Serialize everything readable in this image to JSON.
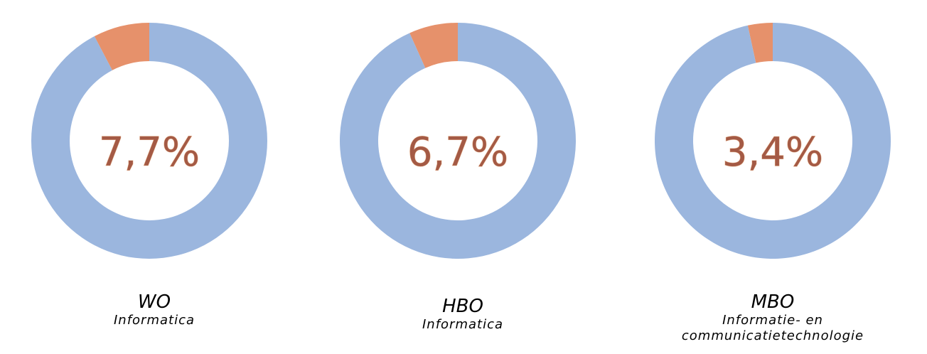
{
  "chart_data": [
    {
      "type": "pie",
      "title": "WO",
      "subtitle": "Informatica",
      "center_label": "7,7%",
      "slices": [
        {
          "label": "",
          "value": 7.7,
          "color": "#E6916B"
        },
        {
          "label": "",
          "value": 92.3,
          "color": "#9BB6DE"
        }
      ]
    },
    {
      "type": "pie",
      "title": "HBO",
      "subtitle": "Informatica",
      "center_label": "6,7%",
      "slices": [
        {
          "label": "",
          "value": 6.7,
          "color": "#E6916B"
        },
        {
          "label": "",
          "value": 93.3,
          "color": "#9BB6DE"
        }
      ]
    },
    {
      "type": "pie",
      "title": "MBO",
      "subtitle": "Informatie- en communicatietechnologie",
      "subtitle_lines": [
        "Informatie- en",
        "communicatietechnologie"
      ],
      "center_label": "3,4%",
      "slices": [
        {
          "label": "",
          "value": 3.4,
          "color": "#E6916B"
        },
        {
          "label": "",
          "value": 96.6,
          "color": "#9BB6DE"
        }
      ]
    }
  ]
}
